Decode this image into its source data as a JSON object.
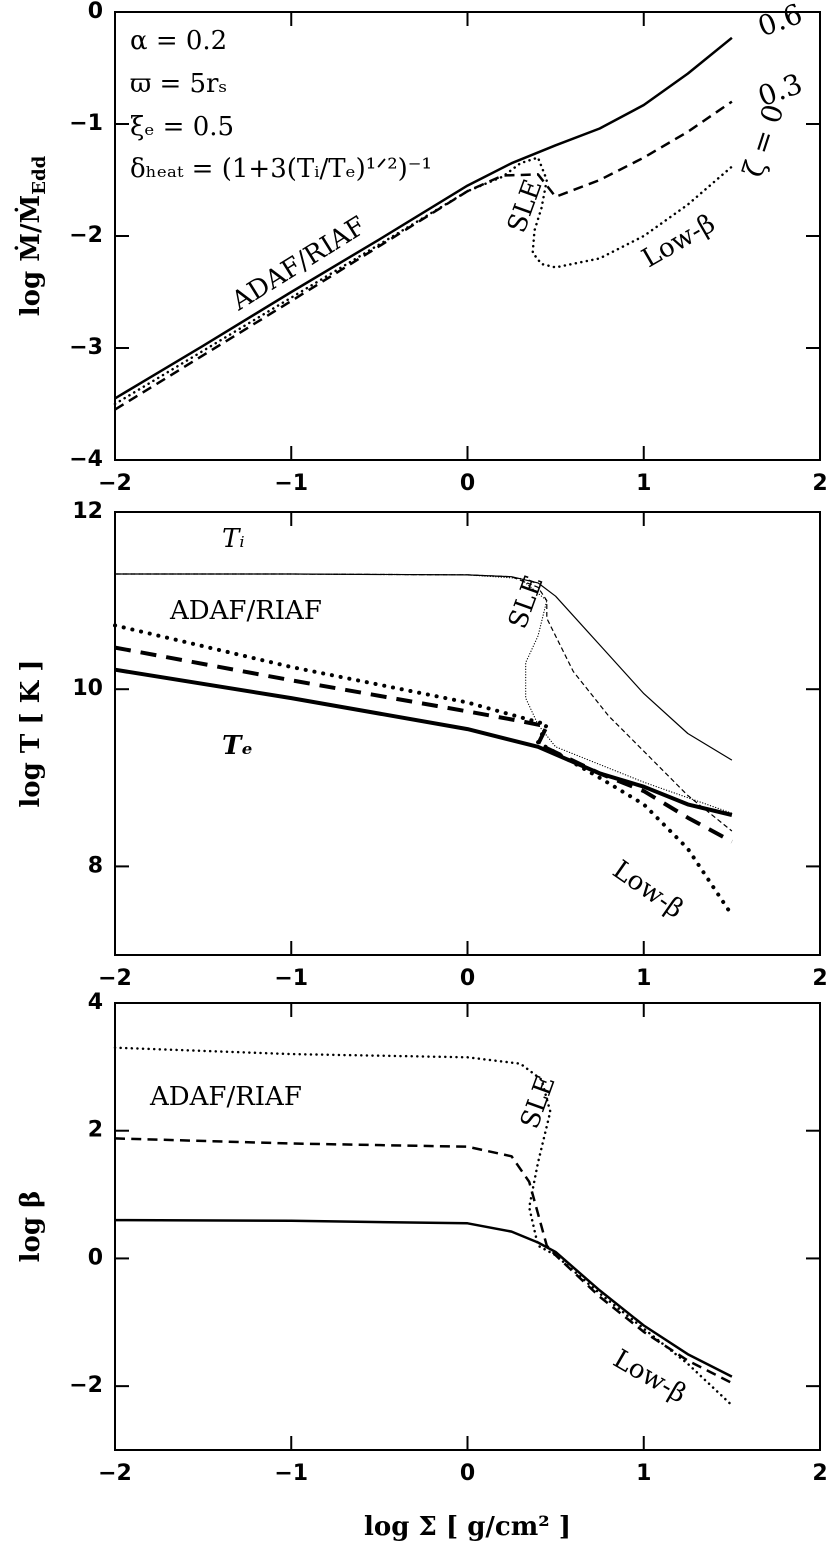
{
  "chart_data": [
    {
      "type": "line",
      "y_label": "log Ṁ/Ṁ",
      "y_label_sub": "Edd",
      "xlim": [
        -2,
        2
      ],
      "ylim": [
        -4,
        0
      ],
      "xticks": [
        {
          "value": -2,
          "label": "−2"
        },
        {
          "value": -1,
          "label": "−1"
        },
        0,
        1,
        2
      ],
      "yticks": [
        0,
        {
          "value": -1,
          "label": "−1"
        },
        {
          "value": -2,
          "label": "−2"
        },
        {
          "value": -3,
          "label": "−3"
        },
        {
          "value": -4,
          "label": "−4"
        }
      ],
      "annotations": [
        "α = 0.2",
        "ϖ = 5rₛ",
        "ξₑ = 0.5",
        "δₕₑₐₜ = (1+3(Tᵢ/Tₑ)¹ᐟ²)⁻¹",
        "ADAF/RIAF",
        "SLE",
        "Low-β"
      ],
      "series": [
        {
          "name": "0.6",
          "color": "#000",
          "line_style": "solid",
          "line_width": 2.5,
          "x": [
            -2,
            -1.5,
            -1,
            -0.5,
            0,
            0.25,
            0.5,
            0.75,
            1,
            1.25,
            1.5
          ],
          "values": [
            -3.45,
            -2.98,
            -2.5,
            -2.03,
            -1.55,
            -1.35,
            -1.19,
            -1.04,
            -0.83,
            -0.55,
            -0.23
          ]
        },
        {
          "name": "0.3",
          "color": "#000",
          "line_style": "dashed",
          "line_width": 2.5,
          "x": [
            -2,
            -1,
            0,
            0.2,
            0.4,
            0.45,
            0.5,
            0.75,
            1,
            1.25,
            1.5
          ],
          "values": [
            -3.55,
            -2.58,
            -1.6,
            -1.46,
            -1.45,
            -1.55,
            -1.65,
            -1.5,
            -1.3,
            -1.07,
            -0.8
          ]
        },
        {
          "name": "ζ = 0",
          "color": "#000",
          "line_style": "dotted",
          "line_width": 2.5,
          "x": [
            -2,
            -1,
            0,
            0.2,
            0.3,
            0.4,
            0.45,
            0.42,
            0.38,
            0.37,
            0.42,
            0.5,
            0.75,
            1,
            1.25,
            1.5
          ],
          "values": [
            -3.5,
            -2.55,
            -1.6,
            -1.47,
            -1.35,
            -1.3,
            -1.5,
            -1.75,
            -1.95,
            -2.15,
            -2.25,
            -2.28,
            -2.2,
            -2.0,
            -1.72,
            -1.38
          ]
        }
      ]
    },
    {
      "type": "line",
      "y_label": "log T [ K ]",
      "xlim": [
        -2,
        2
      ],
      "ylim": [
        7,
        12
      ],
      "xticks": [
        {
          "value": -2,
          "label": "−2"
        },
        {
          "value": -1,
          "label": "−1"
        },
        0,
        1,
        2
      ],
      "yticks": [
        8,
        10,
        12
      ],
      "annotations": [
        "Tᵢ",
        "ADAF/RIAF",
        "SLE",
        "Tₑ",
        "Low-β"
      ],
      "series": [
        {
          "color": "#000",
          "line_style": "solid",
          "line_width": 1.2,
          "x": [
            -2,
            -1,
            0,
            0.25,
            0.4,
            0.5,
            0.75,
            1,
            1.25,
            1.5
          ],
          "values": [
            11.3,
            11.3,
            11.29,
            11.27,
            11.2,
            11.05,
            10.5,
            9.95,
            9.5,
            9.2
          ]
        },
        {
          "color": "#000",
          "line_style": "dashed",
          "line_width": 1.2,
          "x": [
            -2,
            -1,
            0,
            0.25,
            0.4,
            0.45,
            0.45,
            0.6,
            0.8,
            1,
            1.25,
            1.5
          ],
          "values": [
            11.3,
            11.3,
            11.29,
            11.27,
            11.15,
            11.0,
            10.8,
            10.2,
            9.7,
            9.3,
            8.8,
            8.4
          ]
        },
        {
          "color": "#000",
          "line_style": "dotted",
          "line_width": 1.2,
          "x": [
            -2,
            -1,
            0,
            0.3,
            0.45,
            0.4,
            0.33,
            0.33,
            0.4,
            0.5,
            1,
            1.5
          ],
          "values": [
            11.3,
            11.3,
            11.29,
            11.25,
            11.0,
            10.6,
            10.3,
            9.9,
            9.6,
            9.35,
            8.95,
            8.6
          ]
        },
        {
          "color": "#000",
          "line_style": "solid",
          "line_width": 4,
          "x": [
            -2,
            -1,
            0,
            0.4,
            0.75,
            1,
            1.25,
            1.5
          ],
          "values": [
            10.22,
            9.9,
            9.55,
            9.35,
            9.05,
            8.9,
            8.7,
            8.58
          ]
        },
        {
          "color": "#000",
          "line_style": "dashed",
          "line_width": 4,
          "x": [
            -2,
            -1,
            0,
            0.3,
            0.45,
            0.4,
            0.75,
            1,
            1.25,
            1.5
          ],
          "values": [
            10.47,
            10.1,
            9.75,
            9.64,
            9.58,
            9.38,
            9.05,
            8.85,
            8.55,
            8.28
          ]
        },
        {
          "color": "#000",
          "line_style": "dotted",
          "line_width": 4,
          "x": [
            -2,
            -1,
            0,
            0.45,
            0.4,
            0.75,
            1,
            1.25,
            1.5
          ],
          "values": [
            10.72,
            10.25,
            9.85,
            9.6,
            9.4,
            9.0,
            8.7,
            8.2,
            7.45
          ]
        }
      ]
    },
    {
      "type": "line",
      "y_label": "log β",
      "x_label": "log Σ [ g/cm² ]",
      "xlim": [
        -2,
        2
      ],
      "ylim": [
        -3,
        4
      ],
      "xticks": [
        {
          "value": -2,
          "label": "−2"
        },
        {
          "value": -1,
          "label": "−1"
        },
        0,
        1,
        2
      ],
      "yticks": [
        {
          "value": -2,
          "label": "−2"
        },
        0,
        2,
        4
      ],
      "annotations": [
        "ADAF/RIAF",
        "SLE",
        "Low-β"
      ],
      "series": [
        {
          "color": "#000",
          "line_style": "solid",
          "line_width": 2.5,
          "x": [
            -2,
            -1,
            0,
            0.25,
            0.4,
            0.5,
            0.75,
            1,
            1.25,
            1.5
          ],
          "values": [
            0.6,
            0.59,
            0.55,
            0.42,
            0.25,
            0.1,
            -0.5,
            -1.05,
            -1.5,
            -1.85
          ]
        },
        {
          "color": "#000",
          "line_style": "dashed",
          "line_width": 2.5,
          "x": [
            -2,
            -1,
            0,
            0.25,
            0.35,
            0.4,
            0.45,
            0.5,
            0.75,
            1,
            1.25,
            1.5
          ],
          "values": [
            1.88,
            1.8,
            1.75,
            1.6,
            1.2,
            0.7,
            0.2,
            0.05,
            -0.6,
            -1.15,
            -1.6,
            -1.95
          ]
        },
        {
          "color": "#000",
          "line_style": "dotted",
          "line_width": 2.5,
          "x": [
            -2,
            -1,
            0,
            0.3,
            0.42,
            0.47,
            0.4,
            0.35,
            0.4,
            0.5,
            0.75,
            1,
            1.25,
            1.5
          ],
          "values": [
            3.3,
            3.2,
            3.15,
            3.05,
            2.8,
            2.3,
            1.5,
            0.8,
            0.2,
            0.05,
            -0.55,
            -1.1,
            -1.65,
            -2.3
          ]
        }
      ]
    }
  ]
}
